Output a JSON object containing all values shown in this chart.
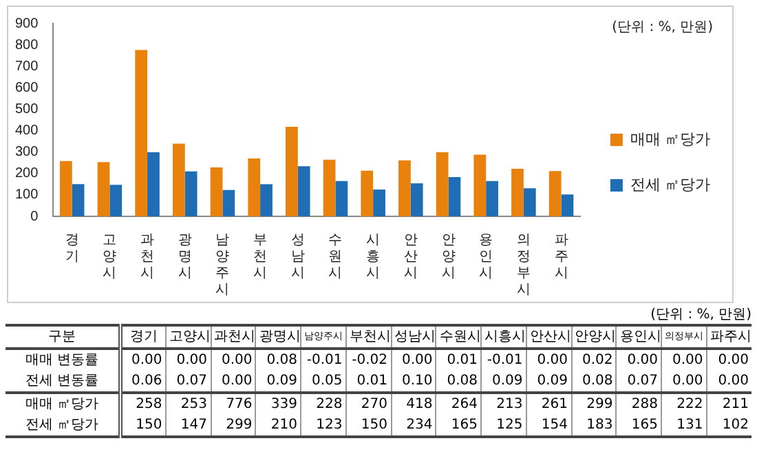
{
  "chart_data": [
    {
      "type": "bar",
      "categories": [
        "경기",
        "고양시",
        "과천시",
        "광명시",
        "남양주시",
        "부천시",
        "성남시",
        "수원시",
        "시흥시",
        "안산시",
        "안양시",
        "용인시",
        "의정부시",
        "파주시"
      ],
      "series": [
        {
          "name": "매매 ㎡당가",
          "color": "#e8820c",
          "values": [
            258,
            253,
            776,
            339,
            228,
            270,
            418,
            264,
            213,
            261,
            299,
            288,
            222,
            211
          ]
        },
        {
          "name": "전세 ㎡당가",
          "color": "#1f6db5",
          "values": [
            150,
            147,
            299,
            210,
            123,
            150,
            234,
            165,
            125,
            154,
            183,
            165,
            131,
            102
          ]
        }
      ],
      "ylim": [
        0,
        900
      ],
      "yticks": [
        0,
        100,
        200,
        300,
        400,
        500,
        600,
        700,
        800,
        900
      ],
      "grid": false,
      "legend": "right",
      "annotations": [
        "(단위 : %, 만원)"
      ]
    },
    {
      "type": "other",
      "categories": [
        "경기",
        "고양시",
        "과천시",
        "광명시",
        "남양주시",
        "부천시",
        "성남시",
        "수원시",
        "시흥시",
        "안산시",
        "안양시",
        "용인시",
        "의정부시",
        "파주시"
      ],
      "series": [
        {
          "name": "매매 변동률",
          "values": [
            0,
            0,
            0,
            0.08,
            -0.01,
            -0.02,
            0,
            0.01,
            -0.01,
            0,
            0.02,
            0,
            0,
            0
          ],
          "value_labels": [
            "0.00",
            "0.00",
            "0.00",
            "0.08",
            "-0.01",
            "-0.02",
            "0.00",
            "0.01",
            "-0.01",
            "0.00",
            "0.02",
            "0.00",
            "0.00",
            "0.00"
          ]
        },
        {
          "name": "전세 변동률",
          "values": [
            0.06,
            0.07,
            0,
            0.09,
            0.05,
            0.01,
            0.1,
            0.08,
            0.09,
            0.09,
            0.08,
            0.07,
            0,
            0
          ],
          "value_labels": [
            "0.06",
            "0.07",
            "0.00",
            "0.09",
            "0.05",
            "0.01",
            "0.10",
            "0.08",
            "0.09",
            "0.09",
            "0.08",
            "0.07",
            "0.00",
            "0.00"
          ]
        },
        {
          "name": "매매 ㎡당가",
          "values": [
            258,
            253,
            776,
            339,
            228,
            270,
            418,
            264,
            213,
            261,
            299,
            288,
            222,
            211
          ],
          "value_labels": [
            "258",
            "253",
            "776",
            "339",
            "228",
            "270",
            "418",
            "264",
            "213",
            "261",
            "299",
            "288",
            "222",
            "211"
          ]
        },
        {
          "name": "전세 ㎡당가",
          "values": [
            150,
            147,
            299,
            210,
            123,
            150,
            234,
            165,
            125,
            154,
            183,
            165,
            131,
            102
          ],
          "value_labels": [
            "150",
            "147",
            "299",
            "210",
            "123",
            "150",
            "234",
            "165",
            "125",
            "154",
            "183",
            "165",
            "131",
            "102"
          ]
        }
      ],
      "annotations": [
        "(단위 : %, 만원)",
        "구분"
      ]
    }
  ]
}
